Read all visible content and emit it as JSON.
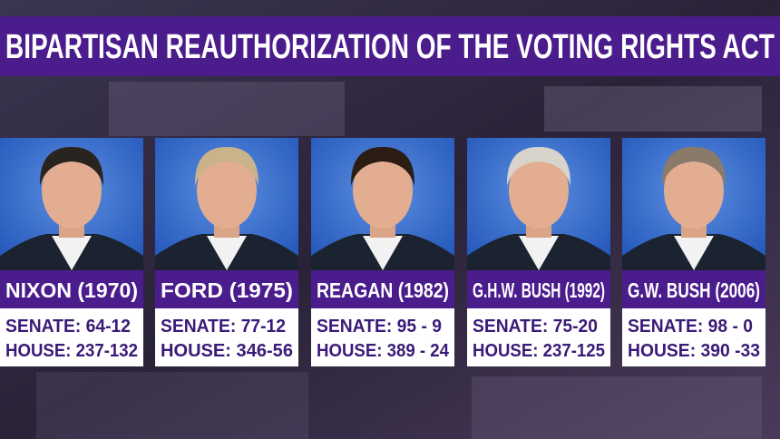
{
  "header": {
    "title": "BIPARTISAN REAUTHORIZATION OF THE VOTING RIGHTS ACT"
  },
  "cards": [
    {
      "name": "NIXON (1970)",
      "senate": "SENATE: 64-12",
      "house": "HOUSE:  237-132"
    },
    {
      "name": "FORD (1975)",
      "senate": "SENATE: 77-12",
      "house": "HOUSE:  346-56"
    },
    {
      "name": "REAGAN (1982)",
      "senate": "SENATE:  95 - 9",
      "house": "HOUSE:  389 - 24"
    },
    {
      "name": "G.H.W. BUSH (1992)",
      "senate": "SENATE: 75-20",
      "house": "HOUSE:  237-125"
    },
    {
      "name": "G.W. BUSH (2006)",
      "senate": "SENATE:  98 - 0",
      "house": "HOUSE:  390 -33"
    }
  ]
}
